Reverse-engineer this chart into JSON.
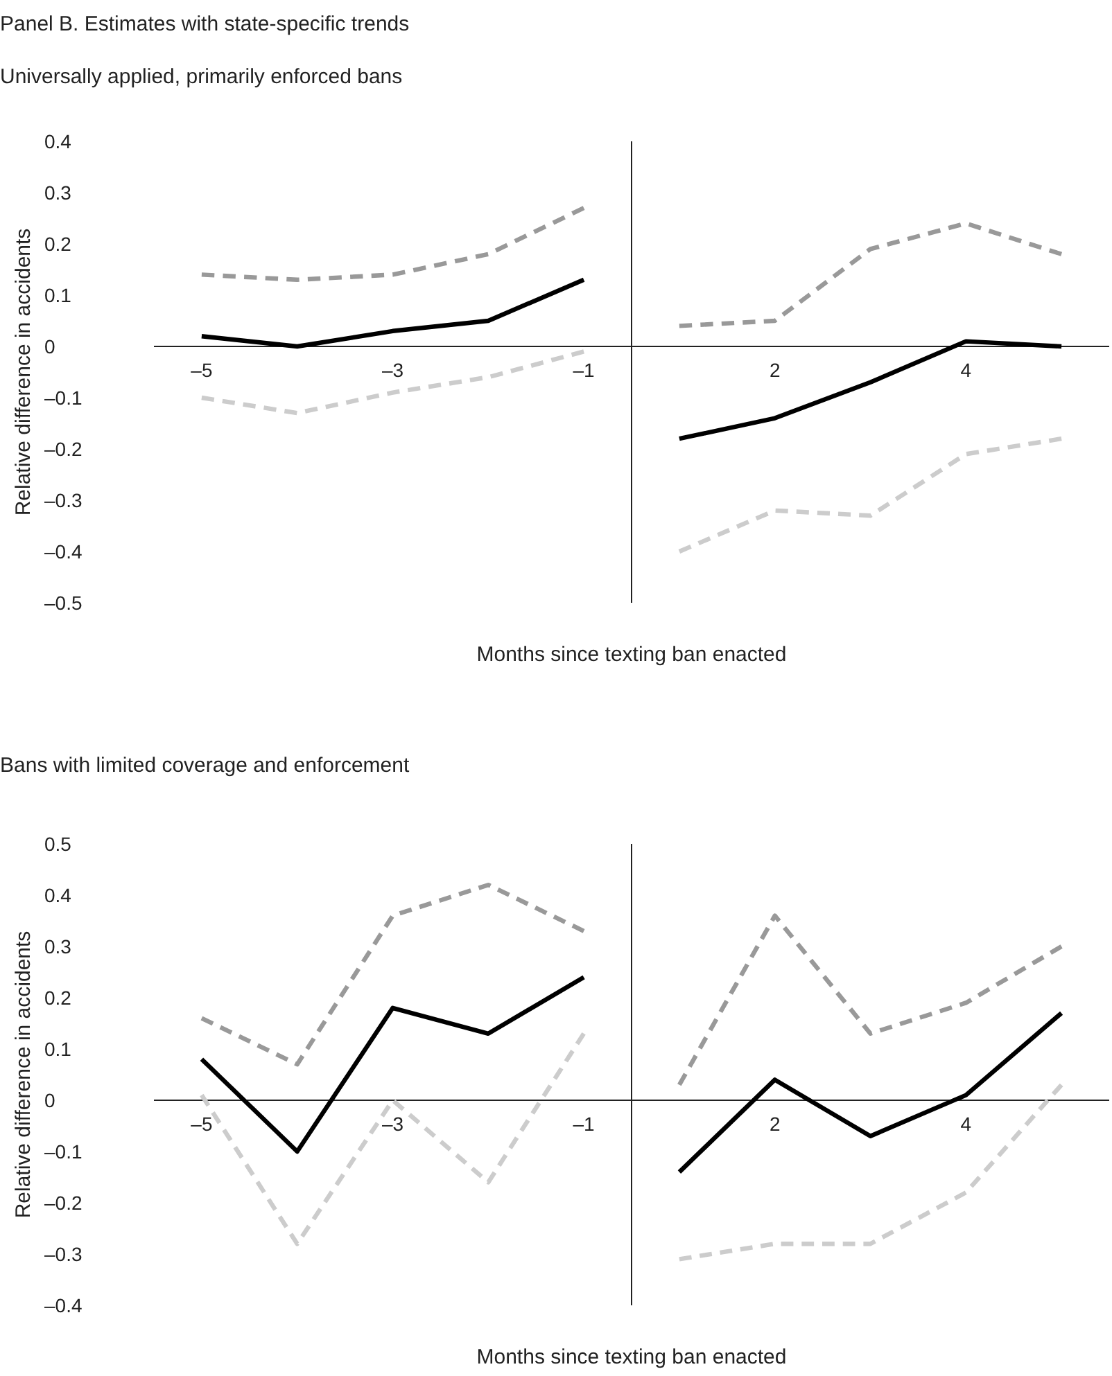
{
  "chart_data": [
    {
      "type": "line",
      "title": "Panel B. Estimates with state-specific trends",
      "subtitle": "Universally applied, primarily enforced bans",
      "xlabel": "Months since texting ban enacted",
      "ylabel": "Relative difference in accidents",
      "categories": [
        "–5",
        null,
        "–3",
        null,
        "–1",
        null,
        "2",
        null,
        "4",
        null
      ],
      "ylim": [
        -0.5,
        0.4
      ],
      "yticks": [
        0.4,
        0.3,
        0.2,
        0.1,
        0,
        {
          "value": -0.1,
          "label": "–0.1"
        },
        {
          "value": -0.2,
          "label": "–0.2"
        },
        {
          "value": -0.3,
          "label": "–0.3"
        },
        {
          "value": -0.4,
          "label": "–0.4"
        },
        {
          "value": -0.5,
          "label": "–0.5"
        }
      ],
      "series": [
        {
          "color": "#999999",
          "line_style": "dashed",
          "values": [
            0.14,
            0.13,
            0.14,
            0.18,
            0.27,
            null,
            null,
            null,
            null,
            null
          ]
        },
        {
          "color": "#999999",
          "line_style": "dashed",
          "values": [
            null,
            null,
            null,
            null,
            null,
            0.04,
            0.05,
            0.19,
            0.24,
            0.18
          ]
        },
        {
          "color": "#cccccc",
          "line_style": "dashed",
          "values": [
            -0.1,
            -0.13,
            -0.09,
            -0.06,
            -0.01,
            null,
            null,
            null,
            null,
            null
          ]
        },
        {
          "color": "#cccccc",
          "line_style": "dashed",
          "values": [
            null,
            null,
            null,
            null,
            null,
            -0.4,
            -0.32,
            -0.33,
            -0.21,
            -0.18
          ]
        },
        {
          "color": "#000000",
          "line_style": "solid",
          "values": [
            0.02,
            0,
            0.03,
            0.05,
            0.13,
            null,
            null,
            null,
            null,
            null
          ]
        },
        {
          "color": "#000000",
          "line_style": "solid",
          "values": [
            null,
            null,
            null,
            null,
            null,
            -0.18,
            -0.14,
            -0.07,
            0.01,
            0
          ]
        }
      ]
    },
    {
      "type": "line",
      "title": "Bans with limited coverage and enforcement",
      "xlabel": "Months since texting ban enacted",
      "ylabel": "Relative difference in accidents",
      "categories": [
        "–5",
        null,
        "–3",
        null,
        "–1",
        null,
        "2",
        null,
        "4",
        null
      ],
      "ylim": [
        -0.4,
        0.5
      ],
      "yticks": [
        0.5,
        0.4,
        0.3,
        0.2,
        0.1,
        0,
        {
          "value": -0.1,
          "label": "–0.1"
        },
        {
          "value": -0.2,
          "label": "–0.2"
        },
        {
          "value": -0.3,
          "label": "–0.3"
        },
        {
          "value": -0.4,
          "label": "–0.4"
        }
      ],
      "series": [
        {
          "color": "#999999",
          "line_style": "dashed",
          "values": [
            0.16,
            0.07,
            0.36,
            0.42,
            0.33,
            null,
            null,
            null,
            null,
            null
          ]
        },
        {
          "color": "#999999",
          "line_style": "dashed",
          "values": [
            null,
            null,
            null,
            null,
            null,
            0.03,
            0.36,
            0.13,
            0.19,
            0.3
          ]
        },
        {
          "color": "#cccccc",
          "line_style": "dashed",
          "values": [
            0.01,
            -0.28,
            0,
            -0.16,
            0.13,
            null,
            null,
            null,
            null,
            null
          ]
        },
        {
          "color": "#cccccc",
          "line_style": "dashed",
          "values": [
            null,
            null,
            null,
            null,
            null,
            -0.31,
            -0.28,
            -0.28,
            -0.18,
            0.03
          ]
        },
        {
          "color": "#000000",
          "line_style": "solid",
          "values": [
            0.08,
            -0.1,
            0.18,
            0.13,
            0.24,
            null,
            null,
            null,
            null,
            null
          ]
        },
        {
          "color": "#000000",
          "line_style": "solid",
          "values": [
            null,
            null,
            null,
            null,
            null,
            -0.14,
            0.04,
            -0.07,
            0.01,
            0.17
          ]
        }
      ]
    }
  ]
}
